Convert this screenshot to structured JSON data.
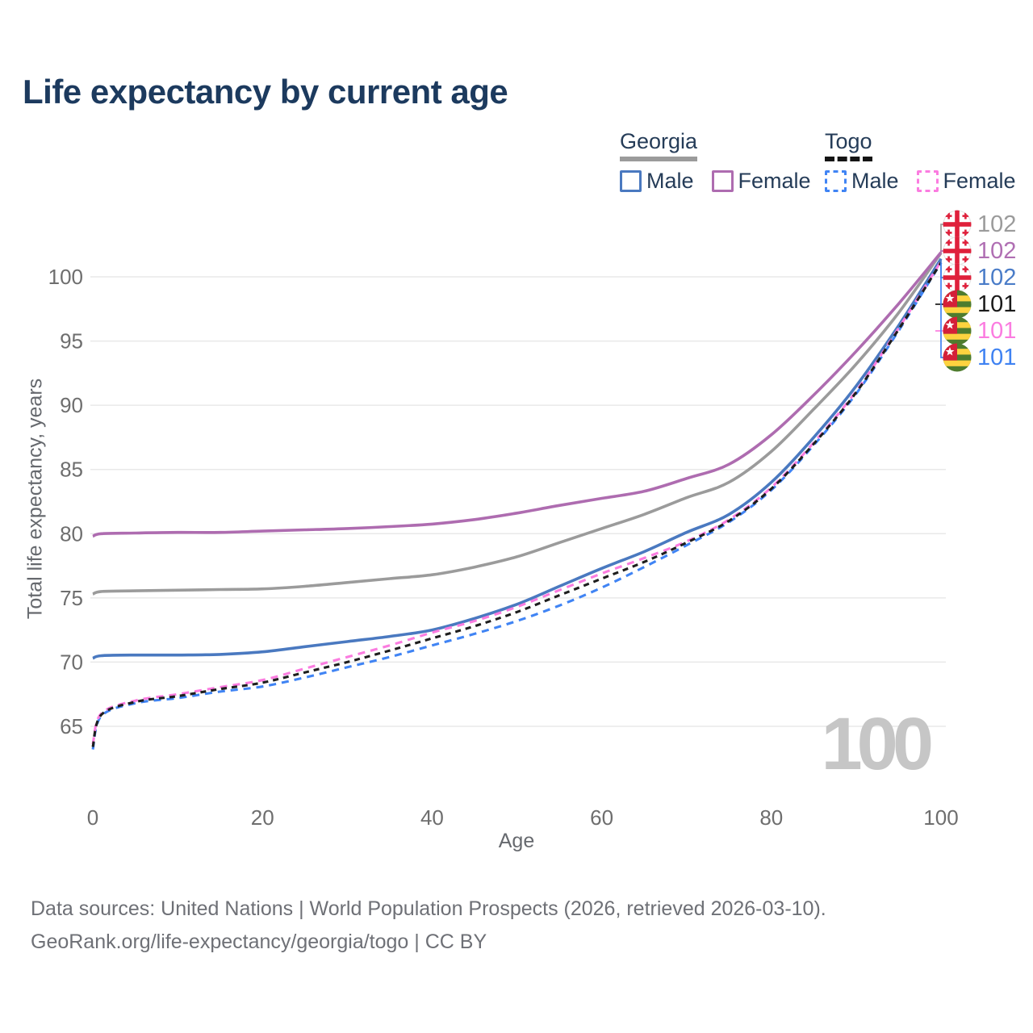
{
  "title": "Life expectancy by current age",
  "legend": {
    "groups": [
      {
        "label": "Georgia",
        "line_style": "solid",
        "line_color": "#9b9b9b",
        "items": [
          {
            "label": "Male",
            "color": "#4a79c0",
            "dashed": false
          },
          {
            "label": "Female",
            "color": "#ae6cb0",
            "dashed": false
          }
        ]
      },
      {
        "label": "Togo",
        "line_style": "dashed",
        "line_color": "#141414",
        "items": [
          {
            "label": "Male",
            "color": "#4084f4",
            "dashed": true
          },
          {
            "label": "Female",
            "color": "#fb7ce0",
            "dashed": true
          }
        ]
      }
    ]
  },
  "chart_data": {
    "type": "line",
    "title": "Life expectancy by current age",
    "xlabel": "Age",
    "ylabel": "Total life expectancy, years",
    "x_ticks": [
      0,
      20,
      40,
      60,
      80,
      100
    ],
    "y_ticks": [
      65,
      70,
      75,
      80,
      85,
      90,
      95,
      100
    ],
    "xlim": [
      0,
      100
    ],
    "ylim": [
      62.8,
      103.2
    ],
    "grid": "horizontal",
    "legend_position": "top-right",
    "watermark": "100",
    "ages": [
      0,
      1,
      5,
      10,
      15,
      20,
      25,
      30,
      35,
      40,
      45,
      50,
      55,
      60,
      65,
      70,
      75,
      80,
      85,
      90,
      95,
      100
    ],
    "series": [
      {
        "id": "georgia_both",
        "name": "Georgia Both sexes",
        "country": "Georgia",
        "flag": "ge",
        "color": "#9b9b9b",
        "dashed": false,
        "end_label": "102",
        "label_color": "#9b9b9b",
        "values": [
          75.3,
          75.5,
          75.55,
          75.6,
          75.65,
          75.7,
          75.9,
          76.2,
          76.5,
          76.8,
          77.4,
          78.2,
          79.3,
          80.4,
          81.5,
          82.8,
          84.0,
          86.4,
          89.7,
          93.2,
          97.2,
          101.85
        ]
      },
      {
        "id": "georgia_female",
        "name": "Georgia Female",
        "country": "Georgia",
        "flag": "ge",
        "color": "#ae6cb0",
        "dashed": false,
        "end_label": "102",
        "label_color": "#b06fb3",
        "values": [
          79.8,
          80.0,
          80.05,
          80.1,
          80.1,
          80.2,
          80.3,
          80.4,
          80.55,
          80.75,
          81.1,
          81.6,
          82.2,
          82.75,
          83.3,
          84.3,
          85.4,
          87.7,
          90.8,
          94.2,
          97.9,
          101.9
        ]
      },
      {
        "id": "georgia_male",
        "name": "Georgia Male",
        "country": "Georgia",
        "flag": "ge",
        "color": "#4a79c0",
        "dashed": false,
        "end_label": "102",
        "label_color": "#4a7cc8",
        "values": [
          70.3,
          70.5,
          70.55,
          70.55,
          70.6,
          70.8,
          71.2,
          71.6,
          72.0,
          72.5,
          73.4,
          74.5,
          75.9,
          77.3,
          78.6,
          80.1,
          81.5,
          84.0,
          87.5,
          91.5,
          96.2,
          101.4
        ]
      },
      {
        "id": "togo_both",
        "name": "Togo Both sexes",
        "country": "Togo",
        "flag": "tg",
        "color": "#1e1e1e",
        "dashed": true,
        "end_label": "101",
        "label_color": "#1a1a1a",
        "values": [
          63.4,
          65.9,
          66.9,
          67.35,
          67.9,
          68.4,
          69.2,
          70.0,
          70.9,
          71.85,
          72.8,
          73.9,
          75.2,
          76.5,
          77.8,
          79.3,
          81.0,
          83.5,
          87.0,
          91.0,
          95.9,
          101.1
        ]
      },
      {
        "id": "togo_female",
        "name": "Togo Female",
        "country": "Togo",
        "flag": "tg",
        "color": "#fb7ce0",
        "dashed": true,
        "end_label": "101",
        "label_color": "#fb7ce0",
        "values": [
          63.6,
          66.0,
          67.0,
          67.5,
          68.05,
          68.6,
          69.5,
          70.4,
          71.3,
          72.3,
          73.2,
          74.3,
          75.6,
          76.9,
          78.1,
          79.4,
          81.1,
          83.6,
          87.1,
          91.1,
          96.0,
          101.2
        ]
      },
      {
        "id": "togo_male",
        "name": "Togo Male",
        "country": "Togo",
        "flag": "tg",
        "color": "#4084f4",
        "dashed": true,
        "end_label": "101",
        "label_color": "#3f82f2",
        "values": [
          63.2,
          65.8,
          66.8,
          67.2,
          67.7,
          68.1,
          68.8,
          69.6,
          70.4,
          71.3,
          72.2,
          73.2,
          74.4,
          75.8,
          77.4,
          79.1,
          80.9,
          83.4,
          86.9,
          90.9,
          95.8,
          101.1
        ]
      }
    ]
  },
  "footer": {
    "line1": "Data sources: United Nations | World Population Prospects (2026, retrieved 2026-03-10).",
    "line2": "GeoRank.org/life-expectancy/georgia/togo | CC BY"
  }
}
